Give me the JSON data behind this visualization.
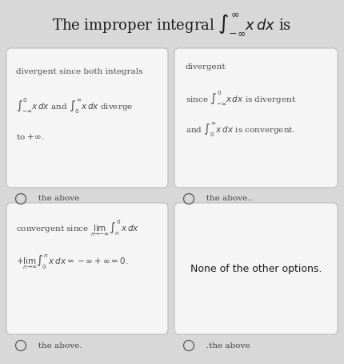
{
  "title": "The improper integral $\\int_{-\\infty}^{\\infty} x\\, dx$ is",
  "title_fontsize": 13,
  "bg_color": "#d8d8d8",
  "card_bg": "#f5f5f5",
  "text_color": "#4a4a4a",
  "cell1_line1": "divergent since both integrals",
  "cell1_line2": "$\\int_{-\\infty}^{0} x\\, dx$ and $\\int_{0}^{\\infty} x\\, dx$ diverge",
  "cell1_line3": "to $+\\infty$.",
  "cell2_line1": "divergent",
  "cell2_line2": "since $\\int_{-\\infty}^{0} x\\, dx$ is divergent",
  "cell2_line3": "and $\\int_{0}^{\\infty} x\\, dx$ is convergent.",
  "cell3_line1": "convergent since $\\lim_{n \\to -\\infty} \\int_{n}^{0} x\\, dx$",
  "cell3_line2": "$+ \\lim_{n \\to \\infty} \\int_{0}^{n} x\\, dx = -\\infty + \\infty = 0.$",
  "cell4_line1": "None of the other options.",
  "label1": "   the above",
  "label2": "   the above..",
  "label3": "   the above.",
  "label4": "   .the above"
}
